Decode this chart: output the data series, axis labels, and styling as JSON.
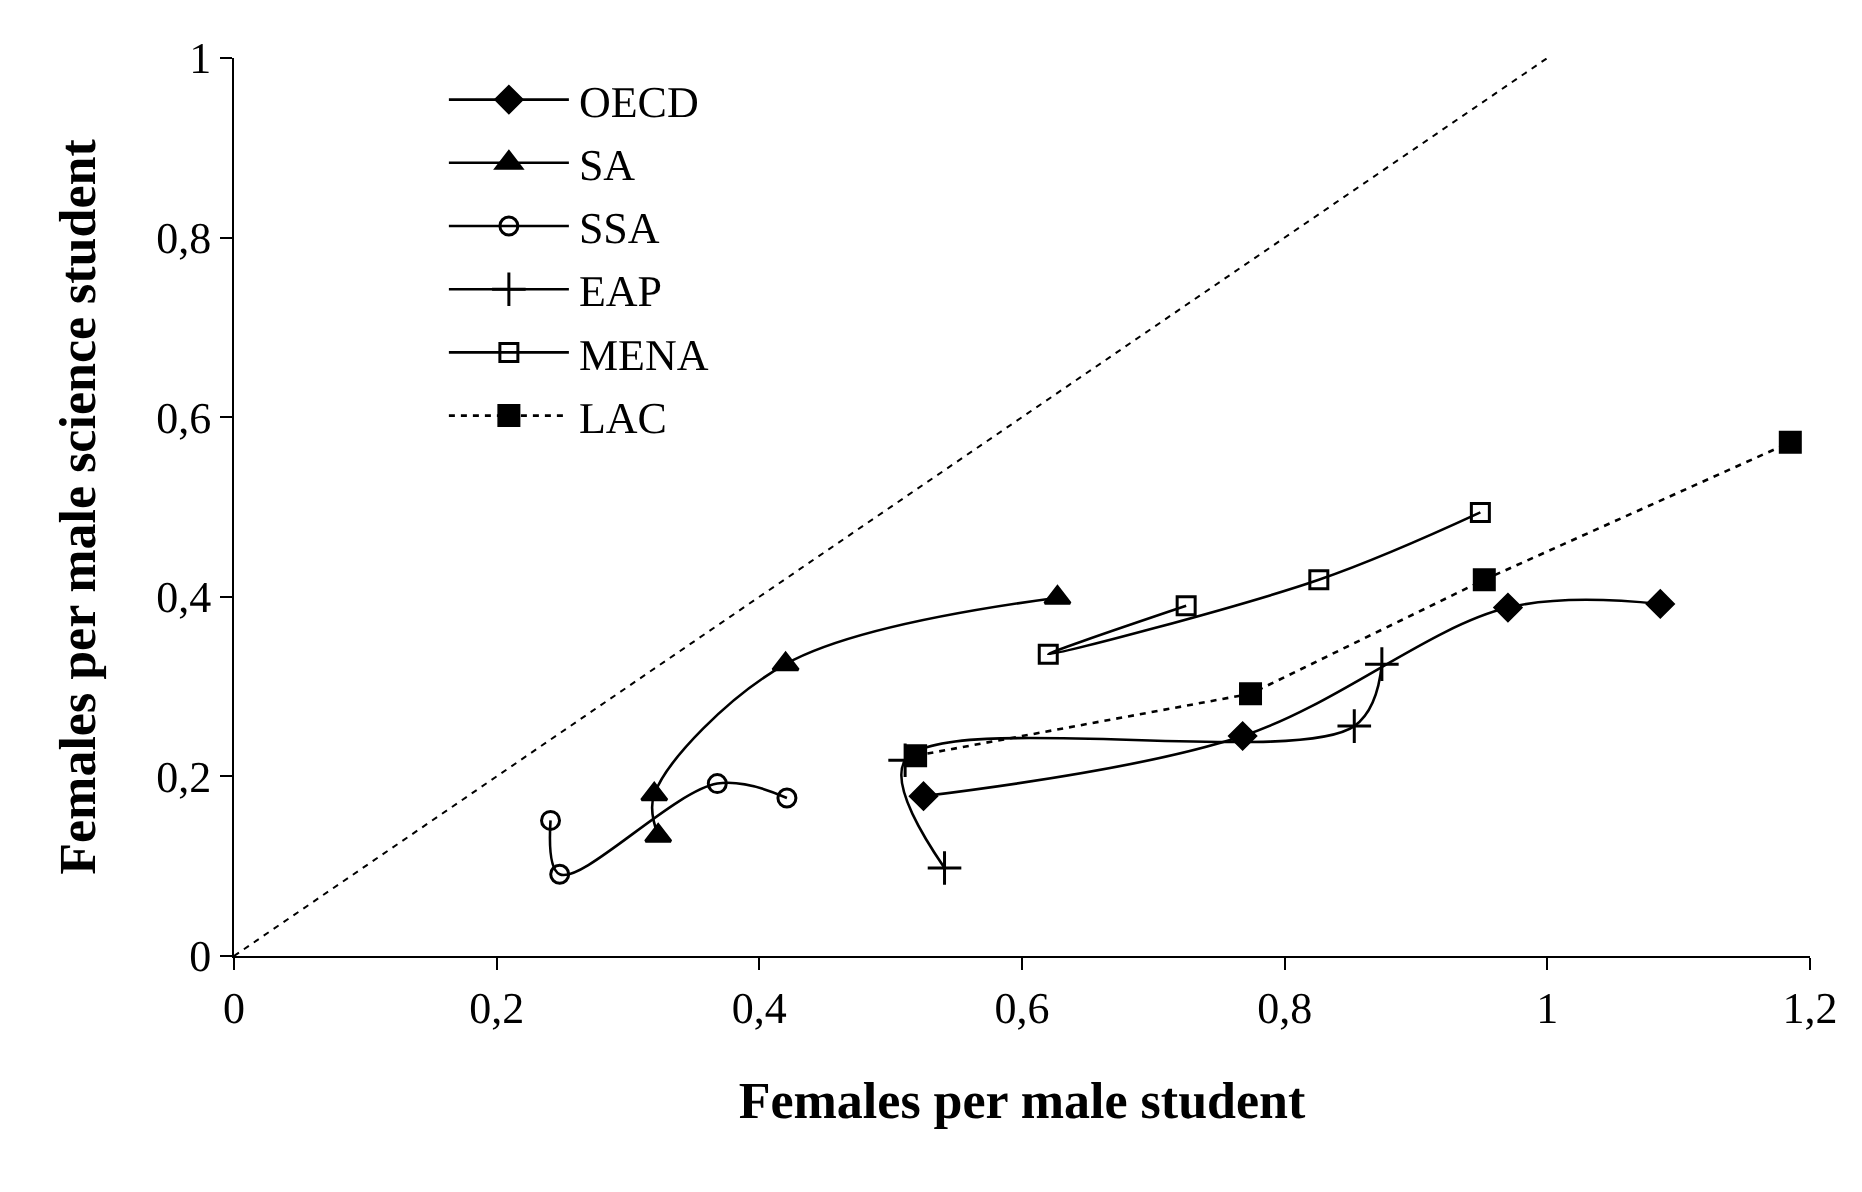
{
  "chart_data": {
    "type": "line",
    "xlabel": "Females per male student",
    "ylabel": "Females per male science student",
    "xlim": [
      0,
      1.2
    ],
    "ylim": [
      0,
      1
    ],
    "xticks": [
      0,
      {
        "value": 0.2,
        "label": "0,2"
      },
      {
        "value": 0.4,
        "label": "0,4"
      },
      {
        "value": 0.6,
        "label": "0,6"
      },
      {
        "value": 0.8,
        "label": "0,8"
      },
      1,
      {
        "value": 1.2,
        "label": "1,2"
      }
    ],
    "yticks": [
      0,
      {
        "value": 0.2,
        "label": "0,2"
      },
      {
        "value": 0.4,
        "label": "0,4"
      },
      {
        "value": 0.6,
        "label": "0,6"
      },
      {
        "value": 0.8,
        "label": "0,8"
      },
      1
    ],
    "legend": "top left",
    "series": [
      {
        "name": "OECD",
        "color": "#000000",
        "marker": "diamond",
        "line_style": "solid",
        "x": [
          0.525,
          0.768,
          0.97,
          1.086
        ],
        "values": [
          0.178,
          0.245,
          0.388,
          0.392
        ]
      },
      {
        "name": "SA",
        "color": "#000000",
        "marker": "triangle",
        "line_style": "solid",
        "x": [
          0.323,
          0.32,
          0.42,
          0.627
        ],
        "values": [
          0.134,
          0.18,
          0.325,
          0.399
        ]
      },
      {
        "name": "SSA",
        "color": "#000000",
        "marker": "circle-open",
        "line_style": "solid",
        "x": [
          0.241,
          0.248,
          0.368,
          0.421
        ],
        "values": [
          0.151,
          0.091,
          0.192,
          0.176
        ]
      },
      {
        "name": "EAP",
        "color": "#000000",
        "marker": "cross",
        "line_style": "solid",
        "x": [
          0.541,
          0.511,
          0.853,
          0.874
        ],
        "values": [
          0.098,
          0.218,
          0.256,
          0.325
        ]
      },
      {
        "name": "MENA",
        "color": "#000000",
        "marker": "square-open",
        "line_style": "solid",
        "x": [
          0.725,
          0.62,
          0.826,
          0.949
        ],
        "values": [
          0.39,
          0.336,
          0.419,
          0.494
        ]
      },
      {
        "name": "LAC",
        "color": "#000000",
        "marker": "square",
        "line_style": "dotted",
        "x": [
          0.519,
          0.774,
          0.952,
          1.185
        ],
        "values": [
          0.223,
          0.292,
          0.419,
          0.572
        ]
      },
      {
        "color": "#000000",
        "marker": "none",
        "line_style": "dotted",
        "x": [
          0,
          1
        ],
        "values": [
          0,
          1
        ]
      }
    ]
  }
}
